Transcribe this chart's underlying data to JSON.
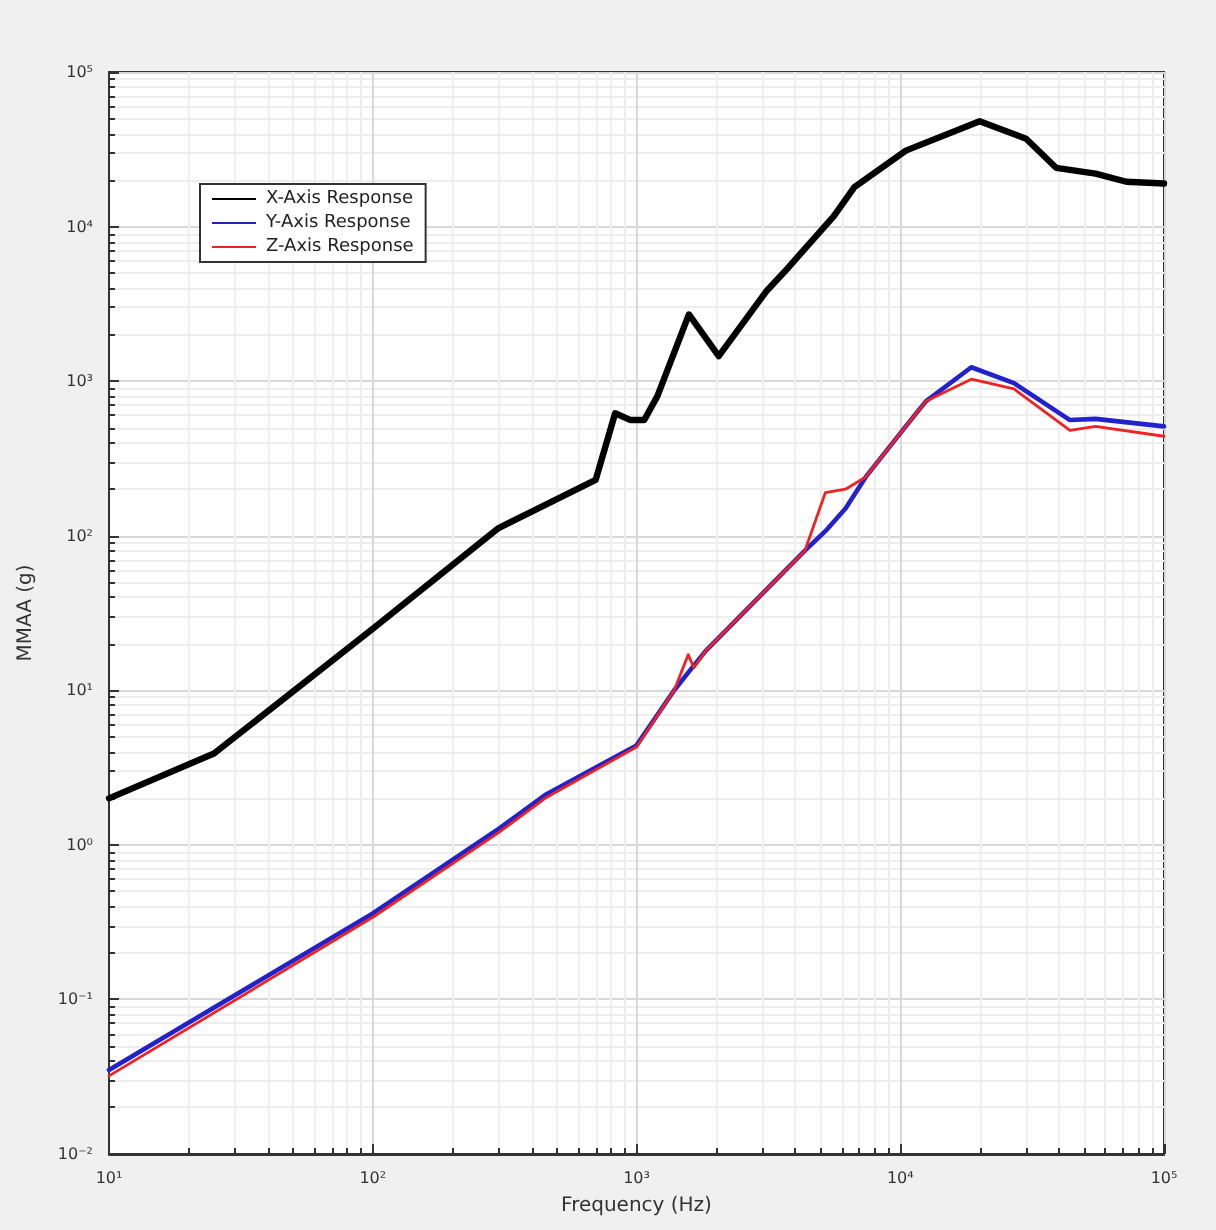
{
  "chart_data": {
    "type": "line",
    "xlabel": "Frequency (Hz)",
    "ylabel": "MMAA (g)",
    "log": "xy",
    "grid": true,
    "legend": "top left",
    "marker": "none",
    "line_style": "solid",
    "xlim": [
      10,
      100000
    ],
    "xticks": [
      {
        "value": 10,
        "label": "10¹"
      },
      {
        "value": 100,
        "label": "10²"
      },
      {
        "value": 1000,
        "label": "10³"
      },
      {
        "value": 10000,
        "label": "10⁴"
      },
      {
        "value": 100000,
        "label": "10⁵"
      }
    ],
    "ylim": [
      0.01,
      100000
    ],
    "yticks": [
      {
        "value": 0.01,
        "label": "10⁻²"
      },
      {
        "value": 0.1,
        "label": "10⁻¹"
      },
      {
        "value": 1,
        "label": "10⁰"
      },
      {
        "value": 10,
        "label": "10¹"
      },
      {
        "value": 100,
        "label": "10²"
      },
      {
        "value": 1000,
        "label": "10³"
      },
      {
        "value": 10000,
        "label": "10⁴"
      },
      {
        "value": 100000,
        "label": "10⁵"
      }
    ],
    "series": [
      {
        "name": "X-Axis Response",
        "color": "#000000",
        "x": [
          10,
          25,
          100,
          300,
          700,
          830,
          950,
          1070,
          1200,
          1580,
          2050,
          3100,
          3640,
          5600,
          6700,
          10500,
          20000,
          30000,
          39000,
          55000,
          72000,
          100000
        ],
        "values": [
          2,
          3.9,
          25,
          112,
          230,
          620,
          560,
          560,
          800,
          2700,
          1450,
          3800,
          5100,
          11700,
          18000,
          31000,
          48000,
          37000,
          24000,
          22000,
          19500,
          19000
        ]
      },
      {
        "name": "Y-Axis Response",
        "color": "#2222cc",
        "x": [
          10,
          100,
          300,
          450,
          1000,
          1390,
          1570,
          1830,
          4350,
          5200,
          6200,
          7400,
          10400,
          12500,
          18600,
          27000,
          44000,
          55000,
          100000
        ],
        "values": [
          0.035,
          0.36,
          1.27,
          2.1,
          4.4,
          10,
          13,
          18,
          80,
          107,
          150,
          240,
          500,
          740,
          1230,
          970,
          560,
          570,
          510
        ]
      },
      {
        "name": "Z-Axis Response",
        "color": "#ee2222",
        "x": [
          10,
          100,
          300,
          450,
          1000,
          1390,
          1570,
          1650,
          1830,
          4350,
          5200,
          6200,
          7400,
          10400,
          12500,
          18600,
          27000,
          44000,
          55000,
          100000
        ],
        "values": [
          0.032,
          0.34,
          1.2,
          2.0,
          4.3,
          10,
          17,
          14,
          18,
          80,
          190,
          200,
          240,
          500,
          740,
          1030,
          890,
          480,
          510,
          440
        ]
      }
    ]
  }
}
